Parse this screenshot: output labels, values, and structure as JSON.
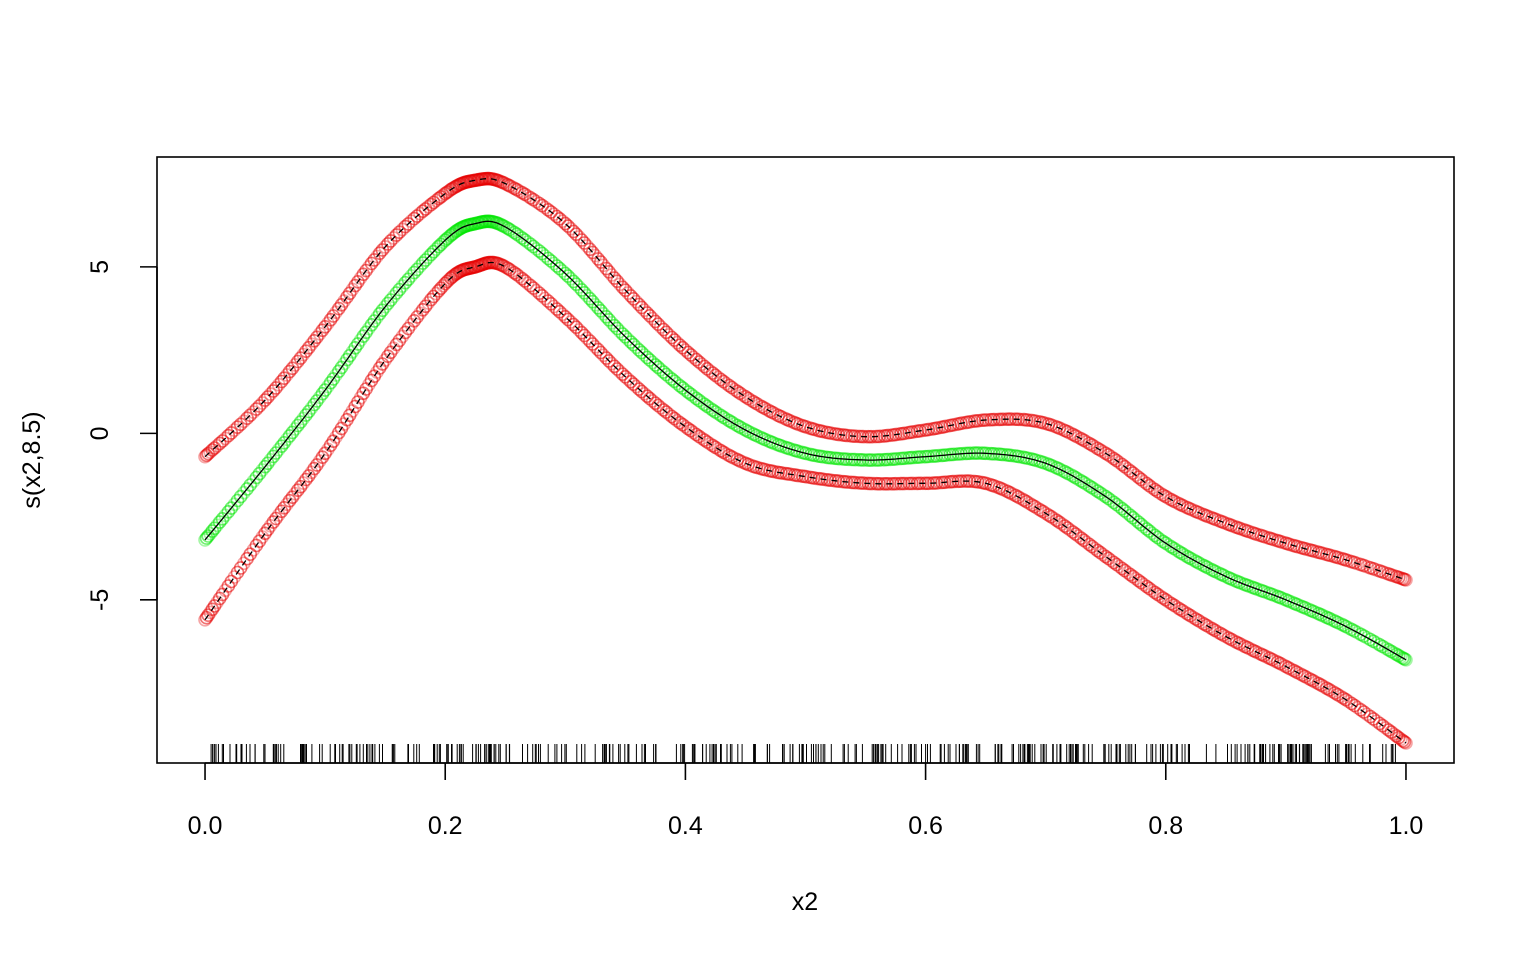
{
  "chart_data": {
    "type": "line",
    "title": "",
    "xlabel": "x2",
    "ylabel": "s(x2,8.5)",
    "xlim": [
      -0.04,
      1.04
    ],
    "ylim": [
      -9.9,
      8.3
    ],
    "x_ticks": [
      0.0,
      0.2,
      0.4,
      0.6,
      0.8,
      1.0
    ],
    "x_tick_labels": [
      "0.0",
      "0.2",
      "0.4",
      "0.6",
      "0.8",
      "1.0"
    ],
    "y_ticks": [
      -5,
      0,
      5
    ],
    "y_tick_labels": [
      "-5",
      "0",
      "5"
    ],
    "grid": false,
    "legend": "none",
    "colors": {
      "fit": "#000000",
      "fit_points": "#00e600",
      "band_points": "#e60000"
    },
    "x": [
      0.0,
      0.05,
      0.1,
      0.15,
      0.2,
      0.225,
      0.25,
      0.3,
      0.35,
      0.4,
      0.45,
      0.5,
      0.55,
      0.6,
      0.65,
      0.7,
      0.75,
      0.8,
      0.85,
      0.9,
      0.95,
      1.0
    ],
    "series": [
      {
        "role": "fit",
        "line": "solid",
        "values": [
          -3.2,
          -1.0,
          1.3,
          3.8,
          5.8,
          6.3,
          6.2,
          4.8,
          2.9,
          1.3,
          0.1,
          -0.6,
          -0.8,
          -0.7,
          -0.6,
          -0.9,
          -1.9,
          -3.3,
          -4.3,
          -5.0,
          -5.8,
          -6.8
        ]
      },
      {
        "role": "upper",
        "line": "dashed",
        "values": [
          -0.7,
          1.0,
          3.2,
          5.6,
          7.2,
          7.6,
          7.5,
          6.3,
          4.3,
          2.5,
          1.1,
          0.2,
          -0.1,
          0.1,
          0.4,
          0.3,
          -0.6,
          -1.9,
          -2.7,
          -3.3,
          -3.8,
          -4.4
        ]
      },
      {
        "role": "lower",
        "line": "dashed",
        "values": [
          -5.6,
          -3.0,
          -0.6,
          2.2,
          4.5,
          5.0,
          5.0,
          3.5,
          1.7,
          0.2,
          -0.9,
          -1.3,
          -1.5,
          -1.5,
          -1.5,
          -2.4,
          -3.7,
          -5.0,
          -6.1,
          -7.0,
          -8.0,
          -9.3
        ]
      }
    ]
  }
}
